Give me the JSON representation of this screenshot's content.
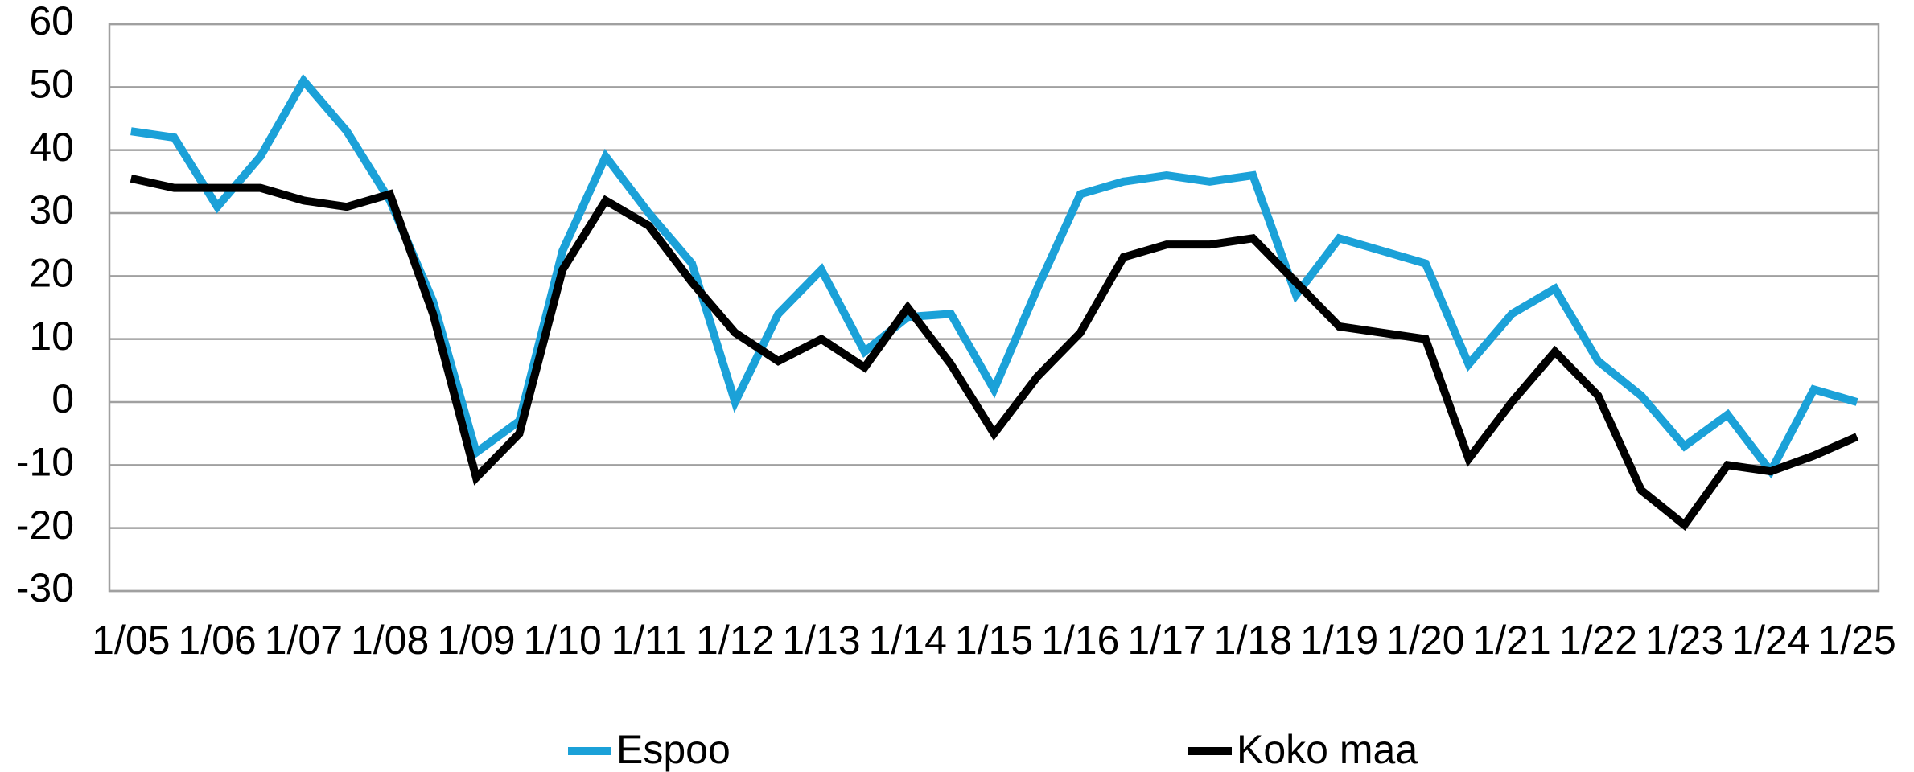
{
  "chart_data": {
    "type": "line",
    "categories": [
      "1/05",
      null,
      "1/06",
      null,
      "1/07",
      null,
      "1/08",
      null,
      "1/09",
      null,
      "1/10",
      null,
      "1/11",
      null,
      "1/12",
      null,
      "1/13",
      null,
      "1/14",
      null,
      "1/15",
      null,
      "1/16",
      null,
      "1/17",
      null,
      "1/18",
      null,
      "1/19",
      null,
      "1/20",
      null,
      "1/21",
      null,
      "1/22",
      null,
      "1/23",
      null,
      "1/24",
      null,
      "1/25"
    ],
    "series": [
      {
        "name": "Espoo",
        "color": "#1ba1d8",
        "values": [
          43,
          42,
          31,
          39,
          51,
          43,
          32,
          16,
          -8,
          -3,
          24,
          39,
          30,
          22,
          0,
          14,
          21,
          8,
          13.5,
          14,
          2,
          18,
          33,
          35,
          36,
          35,
          36,
          17,
          26,
          24,
          22,
          6,
          14,
          18,
          6.5,
          1,
          -7,
          -2,
          -11,
          2,
          0
        ]
      },
      {
        "name": "Koko maa",
        "color": "#000000",
        "values": [
          35.5,
          34,
          34,
          34,
          32,
          31,
          33,
          14,
          -12,
          -5,
          21,
          32,
          28,
          19,
          11,
          6.5,
          10,
          5.5,
          15,
          6,
          -5,
          4,
          11,
          23,
          25,
          25,
          26,
          19,
          12,
          11,
          10,
          -9,
          0,
          8,
          1,
          -14,
          -19.5,
          -10,
          -11,
          -8.5,
          -5.5
        ]
      }
    ],
    "ylim": [
      -30,
      60
    ],
    "yticks": [
      -30,
      -20,
      -10,
      0,
      10,
      20,
      30,
      40,
      50,
      60
    ],
    "grid": true,
    "legend": "bottom"
  }
}
